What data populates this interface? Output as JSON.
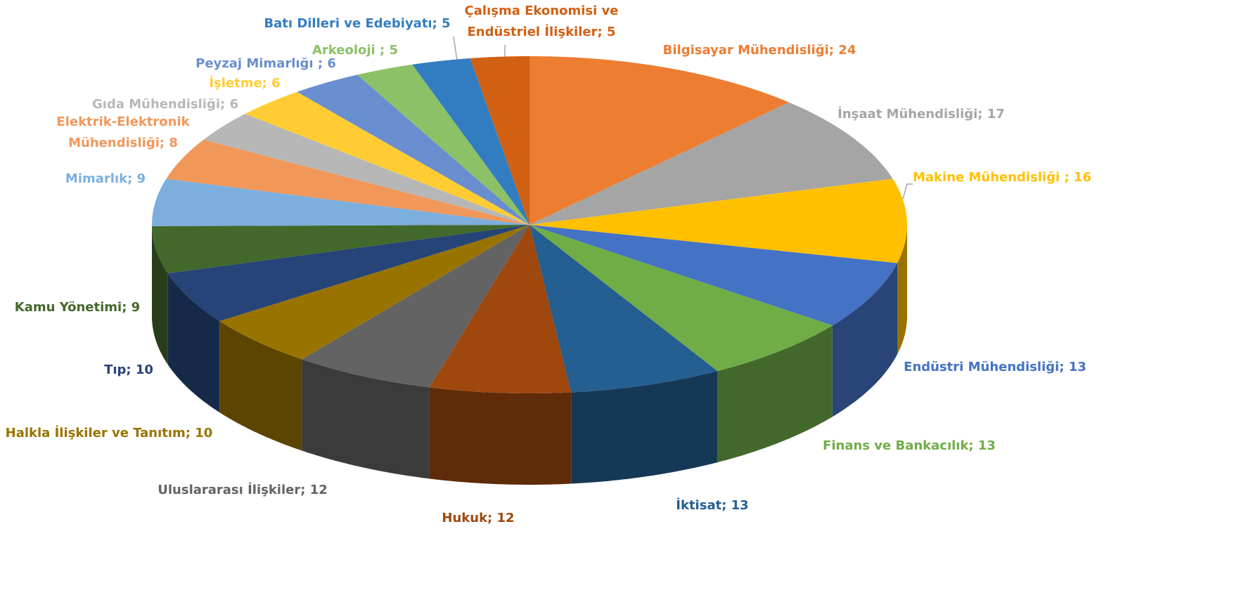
{
  "chart_data": {
    "type": "pie3d",
    "values": [
      24,
      17,
      16,
      13,
      13,
      13,
      12,
      12,
      10,
      10,
      9,
      9,
      8,
      6,
      6,
      6,
      5,
      5,
      5
    ],
    "value_labels": [
      "Bilgisayar Mühendisliği; 24",
      "İnşaat Mühendisliği; 17",
      "Makine Mühendisliği ; 16",
      "Endüstri Mühendisliği; 13",
      "Finans ve Bankacılık; 13",
      "İktisat; 13",
      "Hukuk; 12",
      "Uluslararası İlişkiler; 12",
      "Halkla İlişkiler ve Tanıtım; 10",
      "Tıp; 10",
      "Kamu Yönetimi; 9",
      "Mimarlık; 9",
      "Elektrik-Elektronik\nMühendisliği; 8",
      "Gıda Mühendisliği; 6",
      "İşletme; 6",
      "Peyzaj Mimarlığı ; 6",
      "Arkeoloji ; 5",
      "Batı Dilleri ve Edebiyatı; 5",
      "Çalışma Ekonomisi ve\nEndüstriel İlişkiler; 5"
    ],
    "colors": [
      "#ED7D31",
      "#A5A5A5",
      "#FFC000",
      "#4472C4",
      "#70AD47",
      "#255E91",
      "#9E480E",
      "#636363",
      "#997300",
      "#264478",
      "#43682B",
      "#7CAFDD",
      "#F1975A",
      "#B7B7B7",
      "#FFCD33",
      "#698ED0",
      "#8CC168",
      "#327DC2",
      "#D26012"
    ]
  }
}
